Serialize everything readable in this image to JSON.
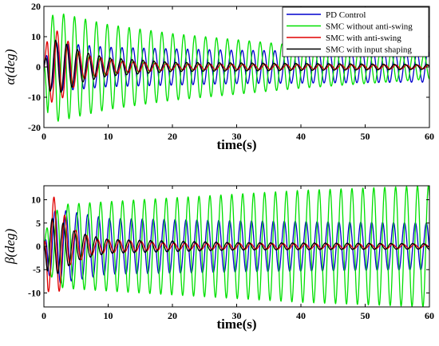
{
  "chart_data": [
    {
      "type": "line",
      "xlabel": "time(s)",
      "ylabel": "α(deg)",
      "xlim": [
        0,
        60
      ],
      "ylim": [
        -20,
        20
      ],
      "xticks": [
        "0",
        "10",
        "20",
        "30",
        "40",
        "50",
        "60"
      ],
      "yticks": [
        "-20",
        "-10",
        "0",
        "10",
        "20"
      ],
      "grid": false,
      "legend": "top-right",
      "series": [
        {
          "name": "PD Control",
          "color": "#0000cd",
          "period": 1.7,
          "phase": 0.6,
          "amp_points": [
            [
              0,
              6
            ],
            [
              2,
              8
            ],
            [
              10,
              6.5
            ],
            [
              30,
              5.5
            ],
            [
              60,
              5
            ]
          ]
        },
        {
          "name": "SMC without anti-swing",
          "color": "#00e000",
          "period": 1.7,
          "phase": 2.8,
          "amp_points": [
            [
              0,
              15
            ],
            [
              2,
              18
            ],
            [
              10,
              14
            ],
            [
              20,
              11
            ],
            [
              40,
              7
            ],
            [
              60,
              4
            ]
          ]
        },
        {
          "name": "SMC with anti-swing",
          "color": "#e00000",
          "period": 1.7,
          "phase": 0.2,
          "amp_points": [
            [
              0,
              11
            ],
            [
              2,
              12
            ],
            [
              6,
              4
            ],
            [
              12,
              2
            ],
            [
              20,
              1
            ],
            [
              60,
              0.6
            ]
          ]
        },
        {
          "name": "SMC with input shaping",
          "color": "#000000",
          "period": 1.7,
          "phase": 1.1,
          "amp_points": [
            [
              0,
              7
            ],
            [
              2,
              9
            ],
            [
              6,
              5
            ],
            [
              10,
              3
            ],
            [
              20,
              1.5
            ],
            [
              60,
              0.8
            ]
          ]
        }
      ]
    },
    {
      "type": "line",
      "xlabel": "time(s)",
      "ylabel": "β(deg)",
      "xlim": [
        0,
        60
      ],
      "ylim": [
        -13,
        13
      ],
      "xticks": [
        "0",
        "10",
        "20",
        "30",
        "40",
        "50",
        "60"
      ],
      "yticks": [
        "-10",
        "-5",
        "0",
        "5",
        "10"
      ],
      "grid": false,
      "series": [
        {
          "name": "PD Control",
          "color": "#0000cd",
          "period": 1.7,
          "phase": 1.5,
          "amp_points": [
            [
              0,
              5
            ],
            [
              2,
              8
            ],
            [
              10,
              6
            ],
            [
              30,
              5.5
            ],
            [
              60,
              5
            ]
          ]
        },
        {
          "name": "SMC without anti-swing",
          "color": "#00e000",
          "period": 1.7,
          "phase": 0.3,
          "amp_points": [
            [
              0,
              5
            ],
            [
              3,
              9
            ],
            [
              15,
              10
            ],
            [
              40,
              12
            ],
            [
              60,
              13
            ]
          ]
        },
        {
          "name": "SMC with anti-swing",
          "color": "#e00000",
          "period": 1.7,
          "phase": 2.1,
          "amp_points": [
            [
              0,
              9
            ],
            [
              2,
              11
            ],
            [
              4,
              4
            ],
            [
              8,
              1.5
            ],
            [
              20,
              0.7
            ],
            [
              60,
              0.4
            ]
          ]
        },
        {
          "name": "SMC with input shaping",
          "color": "#000000",
          "period": 1.7,
          "phase": 3.0,
          "amp_points": [
            [
              0,
              6
            ],
            [
              2,
              6
            ],
            [
              5,
              3
            ],
            [
              10,
              1.5
            ],
            [
              30,
              0.8
            ],
            [
              60,
              0.6
            ]
          ]
        }
      ]
    }
  ]
}
